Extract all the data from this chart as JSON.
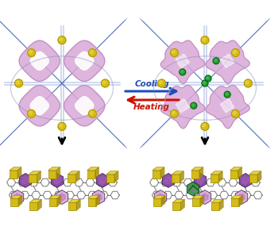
{
  "bg_color": "#f8f8f8",
  "cooling_text": "Cooling",
  "heating_text": "Heating",
  "cooling_arrow_color": "#1a4fbb",
  "heating_arrow_color": "#cc1100",
  "mof_pink": "#d8a8d8",
  "mof_pink_light": "#e8c8e8",
  "mof_pink_edge": "#c090c0",
  "mof_blue_line": "#4466bb",
  "mof_blue_dark": "#223388",
  "mof_yellow": "#d4bc18",
  "mof_yellow_light": "#e8d440",
  "mof_yellow_dark": "#a08800",
  "mof_purple": "#8040a0",
  "mof_purple_light": "#b060c0",
  "mof_green": "#229933",
  "mof_green_light": "#44bb55",
  "mof_gray": "#888888",
  "node_color": "#ccaa10",
  "ellipse_color": "#aaaacc",
  "arrow_color": "#111111"
}
